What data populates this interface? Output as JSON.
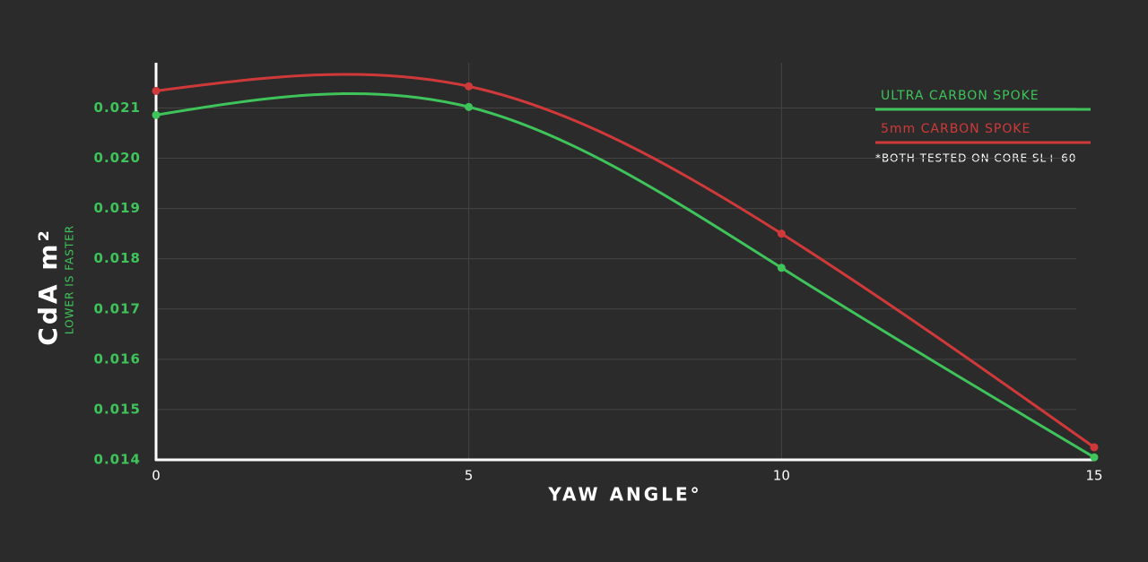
{
  "chart_data": {
    "type": "line",
    "y_title": "CdA m²",
    "y_subtitle": "LOWER IS FASTER",
    "x_title": "YAW ANGLE°",
    "note": "*BOTH TESTED ON CORE SL+ 60",
    "x": [
      0,
      5,
      10,
      15
    ],
    "series": [
      {
        "name": "ULTRA CARBON SPOKE",
        "color": "#3ec45a",
        "values": [
          0.02086,
          0.02102,
          0.01782,
          0.01405
        ]
      },
      {
        "name": "5mm CARBON SPOKE",
        "color": "#d0393a",
        "values": [
          0.02134,
          0.02143,
          0.0185,
          0.01425
        ]
      }
    ],
    "xlim": [
      0,
      15
    ],
    "ylim": [
      0.014,
      0.0219
    ],
    "xticks": [
      0,
      5,
      10,
      15
    ],
    "yticks": [
      0.014,
      0.015,
      0.016,
      0.017,
      0.018,
      0.019,
      {
        "value": 0.02,
        "label": "0.020"
      },
      0.021
    ],
    "grid": true,
    "smooth": true,
    "legend": "upper right"
  }
}
